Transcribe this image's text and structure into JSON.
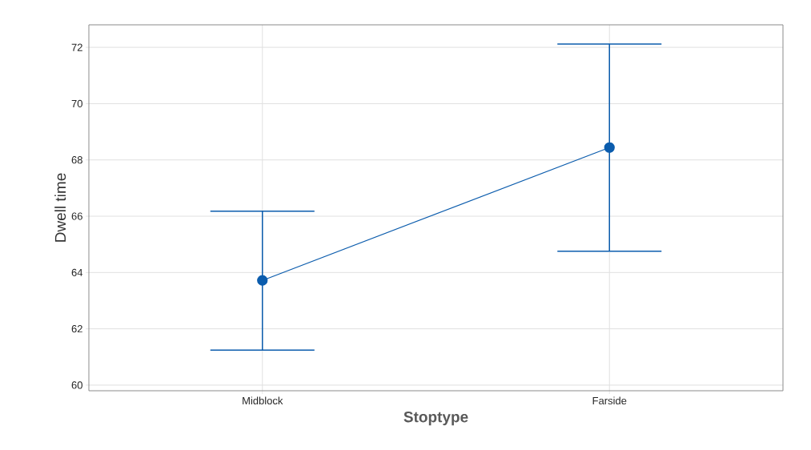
{
  "chart_data": {
    "type": "line",
    "xlabel": "Stoptype",
    "ylabel": "Dwell time",
    "categories": [
      "Midblock",
      "Farside"
    ],
    "values": [
      63.72,
      68.44
    ],
    "errors": [
      [
        61.24,
        66.18
      ],
      [
        64.76,
        72.12
      ]
    ],
    "color": "#0b5cad",
    "marker": "circle",
    "line_style": "solid",
    "ylim": [
      59.8,
      72.8
    ],
    "yticks": [
      60,
      62,
      64,
      66,
      68,
      70,
      72
    ],
    "grid": true
  }
}
